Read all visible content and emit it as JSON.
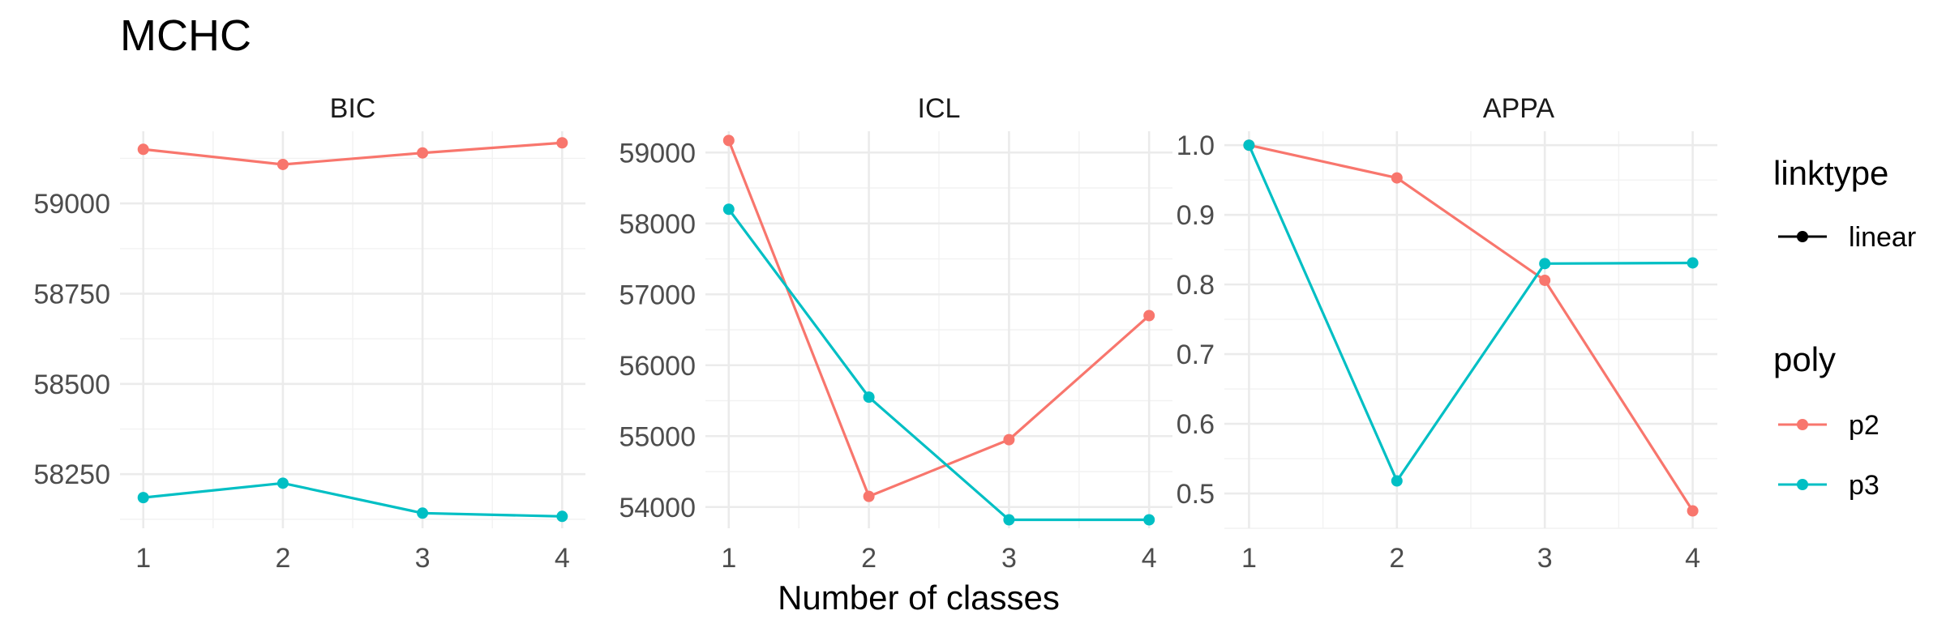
{
  "chart_data": {
    "type": "line",
    "title": "MCHC",
    "xlabel": "Number of classes",
    "ylabel": "",
    "categories": [
      1,
      2,
      3,
      4
    ],
    "panels": [
      {
        "name": "BIC",
        "ylim": [
          58100,
          59200
        ],
        "yticks": [
          58250,
          58500,
          58750,
          59000
        ],
        "series": [
          {
            "name": "p2",
            "values": [
              59150,
              59108,
              59140,
              59168
            ]
          },
          {
            "name": "p3",
            "values": [
              58185,
              58225,
              58142,
              58133
            ]
          }
        ]
      },
      {
        "name": "ICL",
        "ylim": [
          53700,
          59300
        ],
        "yticks": [
          54000,
          55000,
          56000,
          57000,
          58000,
          59000
        ],
        "series": [
          {
            "name": "p2",
            "values": [
              59170,
              54150,
              54950,
              56700
            ]
          },
          {
            "name": "p3",
            "values": [
              58200,
              55550,
              53820,
              53820
            ]
          }
        ]
      },
      {
        "name": "APPA",
        "ylim": [
          0.45,
          1.02
        ],
        "yticks": [
          0.5,
          0.6,
          0.7,
          0.8,
          0.9,
          1.0
        ],
        "ytick_labels": [
          "0.5",
          "0.6",
          "0.7",
          "0.8",
          "0.9",
          "1.0"
        ],
        "series": [
          {
            "name": "p2",
            "values": [
              1.0,
              0.953,
              0.806,
              0.475
            ]
          },
          {
            "name": "p3",
            "values": [
              1.0,
              0.518,
              0.83,
              0.831
            ]
          }
        ]
      }
    ],
    "legends": [
      {
        "title": "linktype",
        "items": [
          {
            "label": "linear",
            "color": "#000000"
          }
        ]
      },
      {
        "title": "poly",
        "items": [
          {
            "label": "p2",
            "color": "#F8766D"
          },
          {
            "label": "p3",
            "color": "#00BFC4"
          }
        ]
      }
    ],
    "colors": {
      "p2": "#F8766D",
      "p3": "#00BFC4"
    },
    "grid": true,
    "legend_position": "right"
  }
}
